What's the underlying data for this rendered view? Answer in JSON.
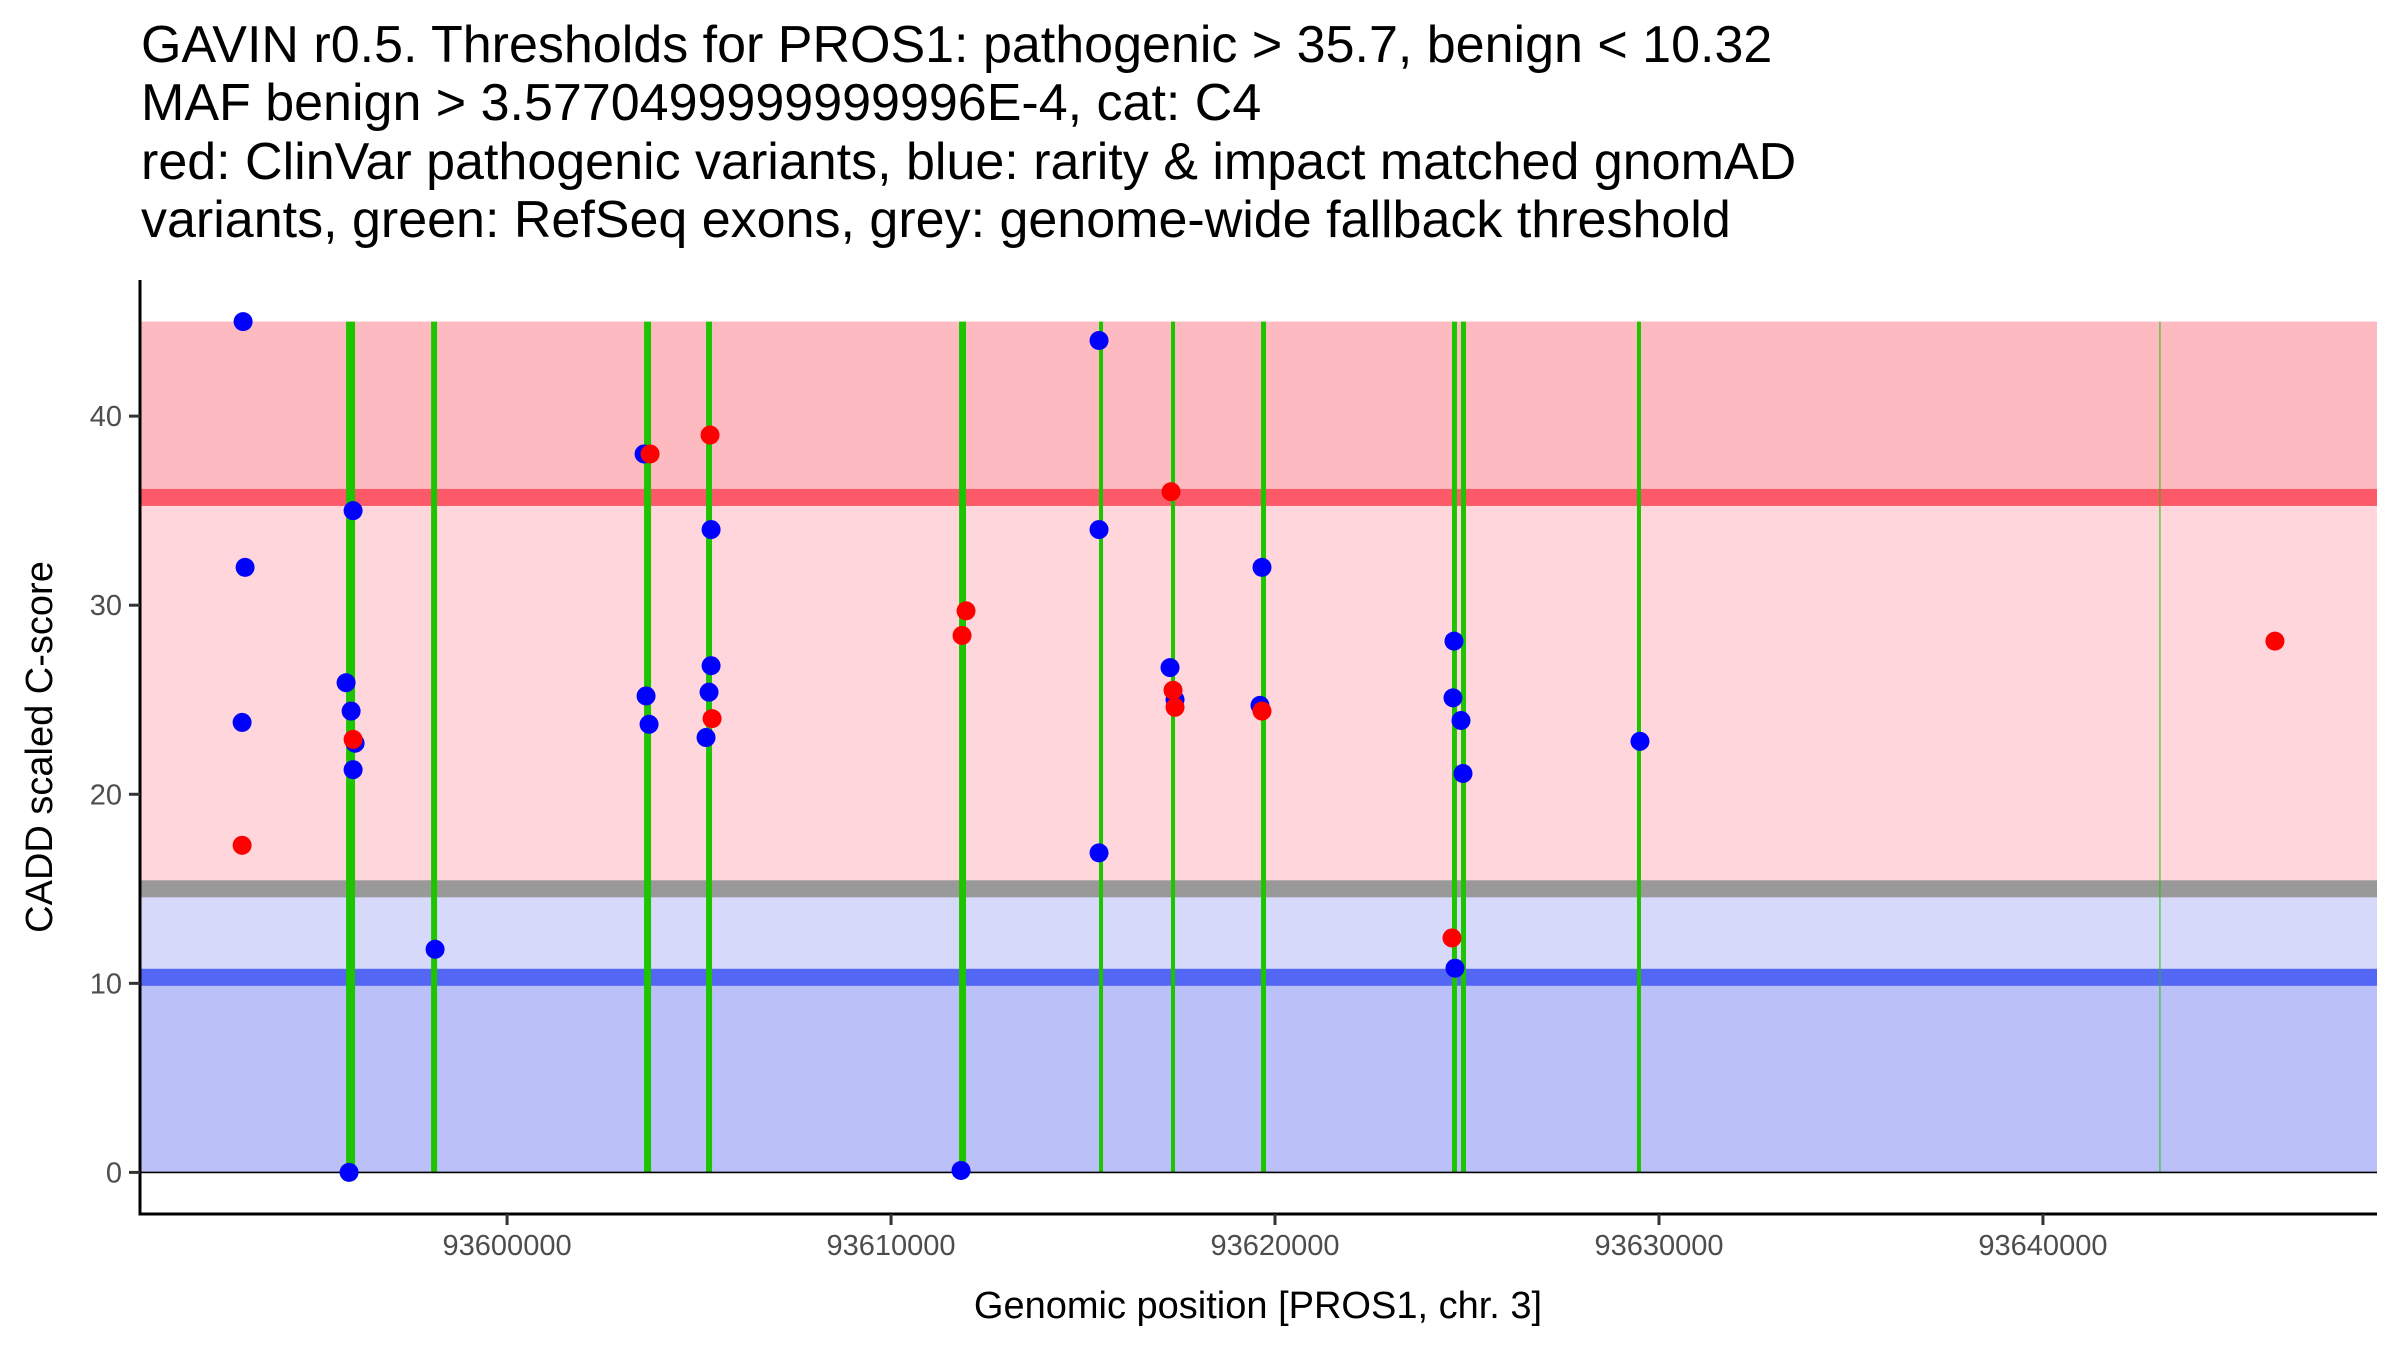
{
  "chart_data": {
    "type": "scatter",
    "title_lines": [
      "GAVIN r0.5. Thresholds for PROS1: pathogenic > 35.7, benign < 10.32",
      "MAF benign > 3.5770499999999996E-4, cat: C4",
      "red: ClinVar pathogenic variants, blue: rarity & impact matched gnomAD",
      "variants, green: RefSeq exons, grey: genome-wide fallback threshold"
    ],
    "xlabel": "Genomic position [PROS1, chr. 3]",
    "ylabel": "CADD scaled C-score",
    "xlim": [
      93590440,
      93648700
    ],
    "ylim": [
      -2.2,
      47.2
    ],
    "x_ticks": [
      {
        "value": 93600000,
        "label": "93600000"
      },
      {
        "value": 93610000,
        "label": "93610000"
      },
      {
        "value": 93620000,
        "label": "93620000"
      },
      {
        "value": 93630000,
        "label": "93630000"
      },
      {
        "value": 93640000,
        "label": "93640000"
      }
    ],
    "y_ticks": [
      {
        "value": 0,
        "label": "0"
      },
      {
        "value": 10,
        "label": "10"
      },
      {
        "value": 20,
        "label": "20"
      },
      {
        "value": 30,
        "label": "30"
      },
      {
        "value": 40,
        "label": "40"
      }
    ],
    "grid": false,
    "legend": "none (described in title)",
    "thresholds": {
      "pathogenic": 35.7,
      "benign": 10.32,
      "genome_wide_fallback": 15,
      "max_score": 45,
      "band_thickness": 0.9
    },
    "regions": [
      {
        "name": "pathogenic-zone",
        "from": 35.7,
        "to": 45,
        "color": "#fdbbc1"
      },
      {
        "name": "intermediate-pathogenic-zone",
        "from": 15,
        "to": 35.7,
        "color": "#fed6db"
      },
      {
        "name": "intermediate-benign-zone",
        "from": 10.32,
        "to": 15,
        "color": "#d7d9fb"
      },
      {
        "name": "benign-zone",
        "from": 0,
        "to": 10.32,
        "color": "#bbc0f9"
      }
    ],
    "colors": {
      "pathogenic_line": "#fc5a69",
      "benign_line": "#5366f4",
      "fallback_line": "#999999",
      "exon": "#1ec400",
      "clinvar": "#ff0000",
      "gnomad": "#0000ff"
    },
    "exons": [
      {
        "start": 93595807,
        "end": 93596041
      },
      {
        "start": 93598021,
        "end": 93598177
      },
      {
        "start": 93603568,
        "end": 93603750
      },
      {
        "start": 93605182,
        "end": 93605338
      },
      {
        "start": 93611771,
        "end": 93611953
      },
      {
        "start": 93615417,
        "end": 93615521
      },
      {
        "start": 93617292,
        "end": 93617396
      },
      {
        "start": 93619636,
        "end": 93619766
      },
      {
        "start": 93624609,
        "end": 93624739
      },
      {
        "start": 93624844,
        "end": 93624974
      },
      {
        "start": 93629427,
        "end": 93629531
      },
      {
        "start": 93643034,
        "end": 93643060
      }
    ],
    "series": [
      {
        "name": "rarity & impact matched gnomAD variants",
        "color": "#0000ff",
        "points": [
          {
            "x": 93593125,
            "y": 45.0
          },
          {
            "x": 93593177,
            "y": 32.0
          },
          {
            "x": 93593099,
            "y": 23.8
          },
          {
            "x": 93595990,
            "y": 35.0
          },
          {
            "x": 93595807,
            "y": 25.9
          },
          {
            "x": 93595938,
            "y": 24.4
          },
          {
            "x": 93596042,
            "y": 22.7
          },
          {
            "x": 93595990,
            "y": 21.3
          },
          {
            "x": 93595885,
            "y": 0.0
          },
          {
            "x": 93598125,
            "y": 11.8
          },
          {
            "x": 93603568,
            "y": 38.0
          },
          {
            "x": 93603620,
            "y": 25.2
          },
          {
            "x": 93603698,
            "y": 23.7
          },
          {
            "x": 93605313,
            "y": 34.0
          },
          {
            "x": 93605313,
            "y": 26.8
          },
          {
            "x": 93605260,
            "y": 25.4
          },
          {
            "x": 93605182,
            "y": 23.0
          },
          {
            "x": 93611823,
            "y": 0.1
          },
          {
            "x": 93615417,
            "y": 44.0
          },
          {
            "x": 93615417,
            "y": 34.0
          },
          {
            "x": 93615417,
            "y": 16.9
          },
          {
            "x": 93617266,
            "y": 26.7
          },
          {
            "x": 93617396,
            "y": 25.0
          },
          {
            "x": 93619661,
            "y": 32.0
          },
          {
            "x": 93619609,
            "y": 24.7
          },
          {
            "x": 93624661,
            "y": 28.1
          },
          {
            "x": 93624635,
            "y": 25.1
          },
          {
            "x": 93624844,
            "y": 23.9
          },
          {
            "x": 93624896,
            "y": 21.1
          },
          {
            "x": 93624688,
            "y": 10.8
          },
          {
            "x": 93629505,
            "y": 22.8
          }
        ]
      },
      {
        "name": "ClinVar pathogenic variants",
        "color": "#ff0000",
        "points": [
          {
            "x": 93593099,
            "y": 17.3
          },
          {
            "x": 93595990,
            "y": 22.9
          },
          {
            "x": 93603724,
            "y": 38.0
          },
          {
            "x": 93605286,
            "y": 39.0
          },
          {
            "x": 93605339,
            "y": 24.0
          },
          {
            "x": 93611953,
            "y": 29.7
          },
          {
            "x": 93611849,
            "y": 28.4
          },
          {
            "x": 93617292,
            "y": 36.0
          },
          {
            "x": 93617344,
            "y": 25.5
          },
          {
            "x": 93617396,
            "y": 24.6
          },
          {
            "x": 93619661,
            "y": 24.4
          },
          {
            "x": 93624609,
            "y": 12.4
          },
          {
            "x": 93646042,
            "y": 28.1
          }
        ]
      }
    ]
  }
}
